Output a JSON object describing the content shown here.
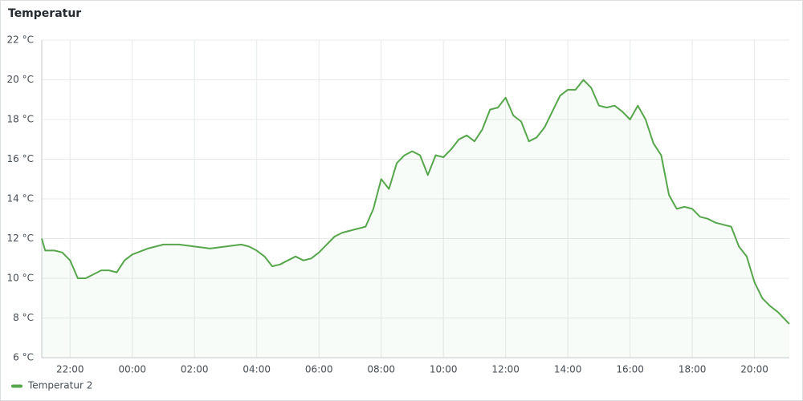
{
  "chart_data": {
    "type": "line",
    "title": "Temperatur",
    "x": [
      21.09,
      21.2,
      21.5,
      21.75,
      22,
      22.25,
      22.5,
      22.75,
      23,
      23.25,
      23.5,
      23.75,
      24,
      24.5,
      25,
      25.5,
      26,
      26.5,
      27,
      27.5,
      27.75,
      28,
      28.25,
      28.5,
      28.75,
      29,
      29.25,
      29.5,
      29.75,
      30,
      30.25,
      30.5,
      30.75,
      31,
      31.25,
      31.5,
      31.75,
      32,
      32.25,
      32.5,
      32.75,
      33,
      33.25,
      33.5,
      33.75,
      34,
      34.25,
      34.5,
      34.75,
      35,
      35.25,
      35.5,
      35.75,
      36,
      36.25,
      36.5,
      36.75,
      37,
      37.25,
      37.5,
      37.75,
      38,
      38.25,
      38.5,
      38.75,
      39,
      39.25,
      39.5,
      39.75,
      40,
      40.25,
      40.5,
      40.75,
      41,
      41.25,
      41.5,
      41.75,
      42,
      42.25,
      42.5,
      42.75,
      43,
      43.25,
      43.5,
      43.75,
      44,
      44.25,
      44.5,
      44.75,
      45.12
    ],
    "series": [
      {
        "name": "Temperatur 2",
        "color": "#56a64b",
        "values": [
          12.0,
          11.4,
          11.4,
          11.3,
          10.9,
          10.0,
          10.0,
          10.2,
          10.4,
          10.4,
          10.3,
          10.9,
          11.2,
          11.5,
          11.7,
          11.7,
          11.6,
          11.5,
          11.6,
          11.7,
          11.6,
          11.4,
          11.1,
          10.6,
          10.7,
          10.9,
          11.1,
          10.9,
          11.0,
          11.3,
          11.7,
          12.1,
          12.3,
          12.4,
          12.5,
          12.6,
          13.5,
          15.0,
          14.5,
          15.8,
          16.2,
          16.4,
          16.2,
          15.2,
          16.2,
          16.1,
          16.5,
          17.0,
          17.2,
          16.9,
          17.5,
          18.5,
          18.6,
          19.1,
          18.2,
          17.9,
          16.9,
          17.1,
          17.6,
          18.4,
          19.2,
          19.5,
          19.5,
          20.0,
          19.6,
          18.7,
          18.6,
          18.7,
          18.4,
          18.0,
          18.7,
          18.0,
          16.8,
          16.2,
          14.2,
          13.5,
          13.6,
          13.5,
          13.1,
          13.0,
          12.8,
          12.7,
          12.6,
          11.6,
          11.1,
          9.8,
          9.0,
          8.6,
          8.3,
          7.7
        ]
      }
    ],
    "xlim": [
      21.09,
      45.12
    ],
    "xticks": [
      {
        "value": 22,
        "label": "22:00"
      },
      {
        "value": 24,
        "label": "00:00"
      },
      {
        "value": 26,
        "label": "02:00"
      },
      {
        "value": 28,
        "label": "04:00"
      },
      {
        "value": 30,
        "label": "06:00"
      },
      {
        "value": 32,
        "label": "08:00"
      },
      {
        "value": 34,
        "label": "10:00"
      },
      {
        "value": 36,
        "label": "12:00"
      },
      {
        "value": 38,
        "label": "14:00"
      },
      {
        "value": 40,
        "label": "16:00"
      },
      {
        "value": 42,
        "label": "18:00"
      },
      {
        "value": 44,
        "label": "20:00"
      }
    ],
    "ylim": [
      6,
      22
    ],
    "yticks": [
      {
        "value": 6,
        "label": "6 °C"
      },
      {
        "value": 8,
        "label": "8 °C"
      },
      {
        "value": 10,
        "label": "10 °C"
      },
      {
        "value": 12,
        "label": "12 °C"
      },
      {
        "value": 14,
        "label": "14 °C"
      },
      {
        "value": 16,
        "label": "16 °C"
      },
      {
        "value": 18,
        "label": "18 °C"
      },
      {
        "value": 20,
        "label": "20 °C"
      },
      {
        "value": 22,
        "label": "22 °C"
      }
    ],
    "grid": true
  }
}
